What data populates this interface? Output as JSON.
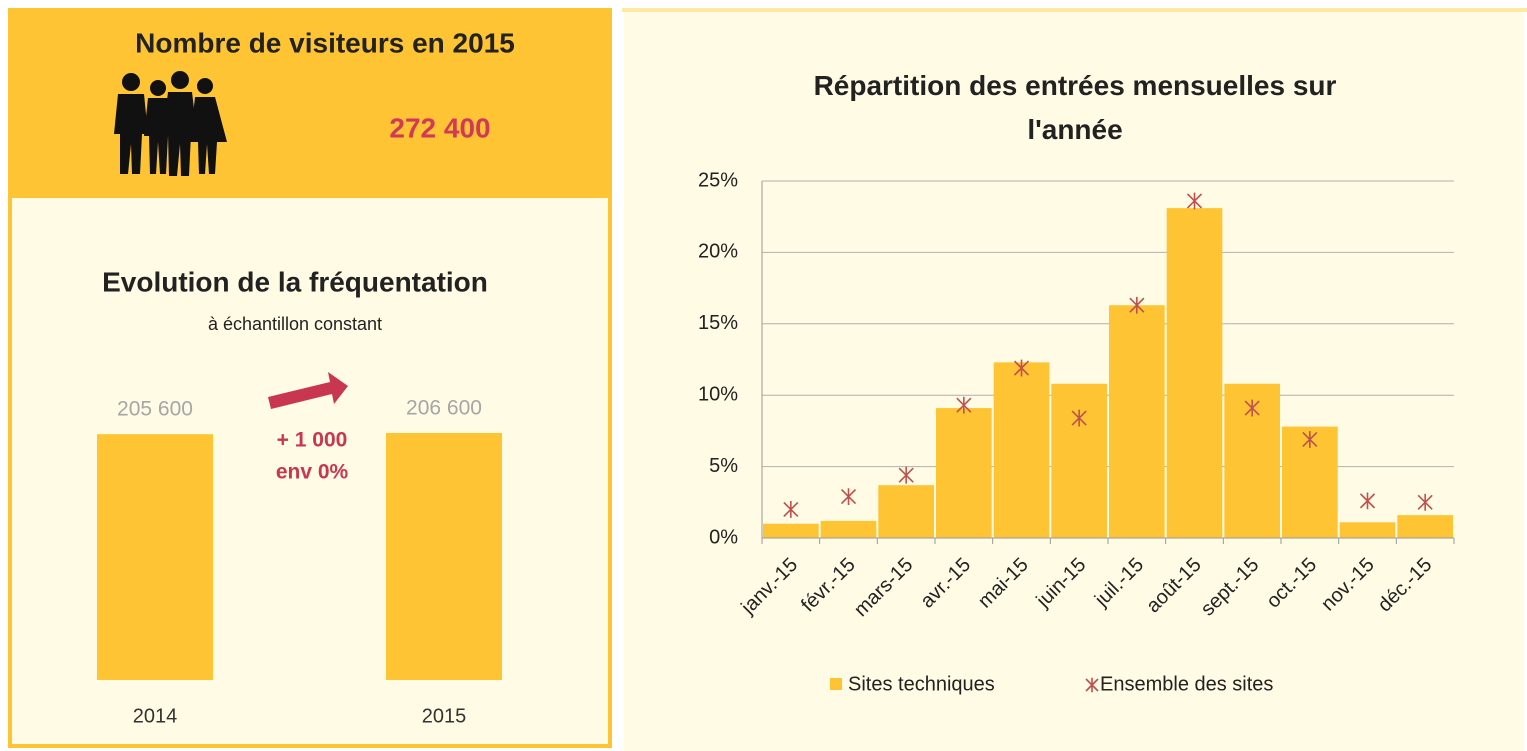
{
  "header": {
    "title": "Nombre de visiteurs en 2015",
    "visitors": "272 400"
  },
  "chart_data": [
    {
      "type": "bar",
      "title": "Evolution de la fréquentation",
      "subtitle": "à échantillon constant",
      "categories": [
        "2014",
        "2015"
      ],
      "values": [
        205600,
        206600
      ],
      "value_labels": [
        "205 600",
        "206 600"
      ],
      "color": "#fec434",
      "annotations": [
        "+ 1 000",
        "env 0%"
      ]
    },
    {
      "type": "bar",
      "title": "Répartition des entrées mensuelles sur l'année",
      "categories": [
        "janv.-15",
        "févr.-15",
        "mars-15",
        "avr.-15",
        "mai-15",
        "juin-15",
        "juil.-15",
        "août-15",
        "sept.-15",
        "oct.-15",
        "nov.-15",
        "déc.-15"
      ],
      "series": [
        {
          "name": "Sites techniques",
          "color": "#fec434",
          "values": [
            1.0,
            1.2,
            3.7,
            9.1,
            12.3,
            10.8,
            16.3,
            23.1,
            10.8,
            7.8,
            1.1,
            1.6
          ]
        },
        {
          "name": "Ensemble des sites",
          "color": "#c0504d",
          "marker": "asterisk",
          "values": [
            2.0,
            2.9,
            4.4,
            9.3,
            11.9,
            8.4,
            16.3,
            23.6,
            9.1,
            6.9,
            2.6,
            2.5
          ]
        }
      ],
      "ylim": [
        0,
        25
      ],
      "yticks": [
        {
          "value": 0,
          "label": "0%"
        },
        {
          "value": 5,
          "label": "5%"
        },
        {
          "value": 10,
          "label": "10%"
        },
        {
          "value": 15,
          "label": "15%"
        },
        {
          "value": 20,
          "label": "20%"
        },
        {
          "value": 25,
          "label": "25%"
        }
      ],
      "grid": true,
      "legend": "bottom"
    }
  ]
}
